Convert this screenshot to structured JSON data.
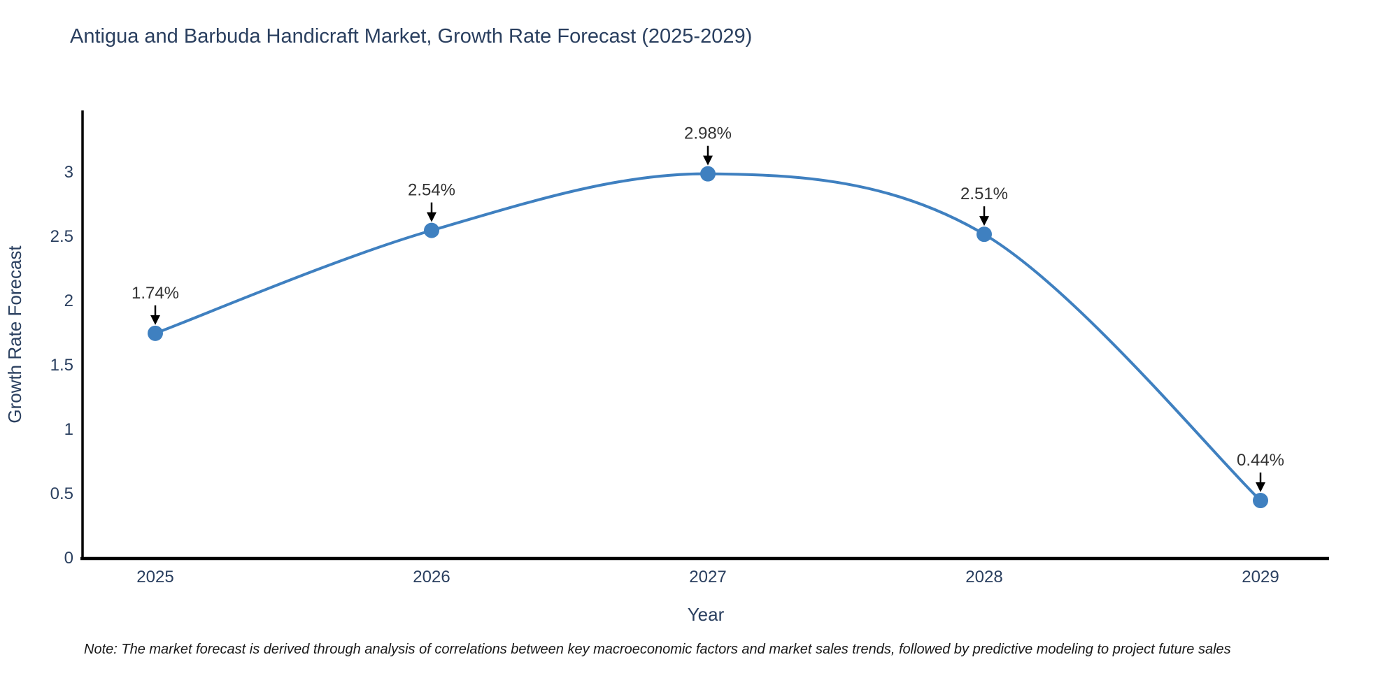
{
  "chart_data": {
    "type": "line",
    "title": "Antigua and Barbuda Handicraft Market, Growth Rate Forecast (2025-2029)",
    "x": [
      "2025",
      "2026",
      "2027",
      "2028",
      "2029"
    ],
    "values": [
      1.74,
      2.54,
      2.98,
      2.51,
      0.44
    ],
    "point_labels": [
      "1.74%",
      "2.54%",
      "2.98%",
      "2.51%",
      "0.44%"
    ],
    "xlabel": "Year",
    "ylabel": "Growth Rate Forecast",
    "ylim": [
      0,
      3.47
    ],
    "yticks": [
      "0",
      "0.5",
      "1",
      "1.5",
      "2",
      "2.5",
      "3"
    ],
    "ytick_values": [
      0,
      0.5,
      1,
      1.5,
      2,
      2.5,
      3
    ],
    "line_shape": "spline",
    "grid": false,
    "legend": "none",
    "line_color": "#3f80c0",
    "marker_color": "#3f80c0",
    "axis_color": "#000000",
    "annotation_arrow_color": "#000000"
  },
  "note": "Note: The market forecast is derived through analysis of correlations between key macroeconomic factors and market sales trends, followed by predictive modeling to project future sales"
}
